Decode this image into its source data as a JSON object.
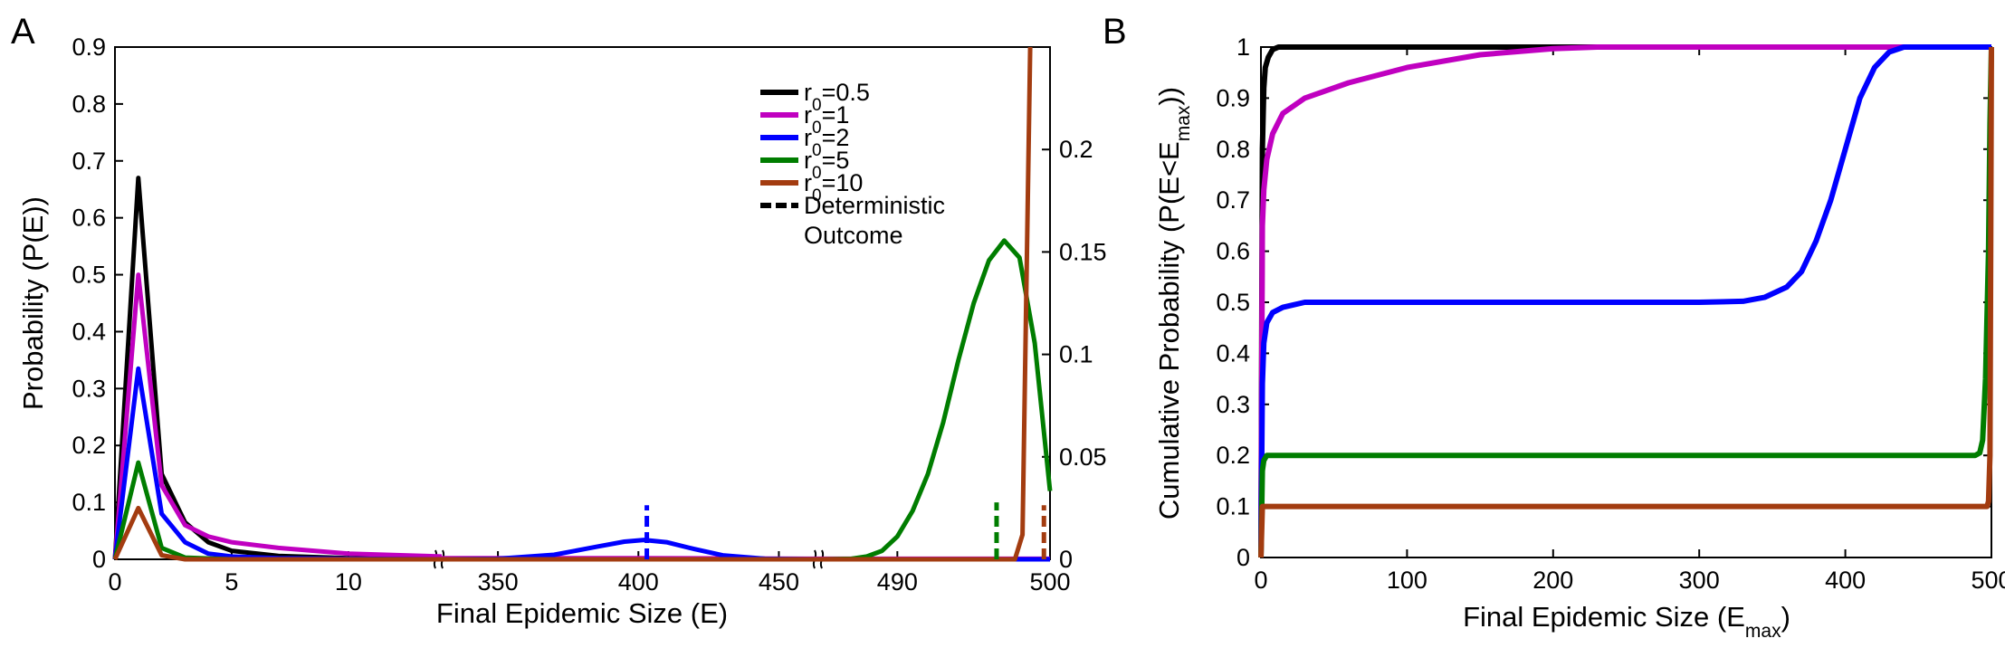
{
  "colors": {
    "r0_0_5": "#000000",
    "r0_1": "#c000c0",
    "r0_2": "#0000ff",
    "r0_5": "#007d00",
    "r0_10": "#a33c10"
  },
  "chart_data": [
    {
      "type": "line",
      "panel_label": "A",
      "xlabel": "Final Epidemic Size (E)",
      "ylabel": "Probability (P(E))",
      "axis_break": "broken x-axis in three segments: 0-14, 330-465, 485-500; right y-axis applies to r0=10",
      "yticks_left": [
        "0",
        "0.1",
        "0.2",
        "0.3",
        "0.4",
        "0.5",
        "0.6",
        "0.7",
        "0.8",
        "0.9"
      ],
      "ylim_left": [
        0,
        0.9
      ],
      "yticks_right": [
        "0",
        "0.05",
        "0.1",
        "0.15",
        "0.2"
      ],
      "ylim_right": [
        0,
        0.25
      ],
      "xticks": [
        "0",
        "5",
        "10",
        "350",
        "400",
        "450",
        "490",
        "500"
      ],
      "xtick_values": [
        0,
        5,
        10,
        350,
        400,
        450,
        490,
        500
      ],
      "legend": {
        "position": "top-right",
        "entries": [
          {
            "label_main": "r",
            "label_sub": "0",
            "label_rest": "=0.5",
            "style": "solid"
          },
          {
            "label_main": "r",
            "label_sub": "0",
            "label_rest": "=1",
            "style": "solid"
          },
          {
            "label_main": "r",
            "label_sub": "0",
            "label_rest": "=2",
            "style": "solid"
          },
          {
            "label_main": "r",
            "label_sub": "0",
            "label_rest": "=5",
            "style": "solid"
          },
          {
            "label_main": "r",
            "label_sub": "0",
            "label_rest": "=10",
            "style": "solid"
          },
          {
            "label_main": "Deterministic",
            "label_sub": "",
            "label_rest": "",
            "label_line2": "Outcome",
            "style": "dashed"
          }
        ]
      },
      "series": [
        {
          "name": "r0=0.5",
          "color_key": "r0_0_5",
          "segments": [
            [
              [
                0,
                0
              ],
              [
                1,
                0.67
              ],
              [
                2,
                0.15
              ],
              [
                3,
                0.065
              ],
              [
                4,
                0.03
              ],
              [
                5,
                0.015
              ],
              [
                7,
                0.006
              ],
              [
                10,
                0.002
              ],
              [
                14,
                0
              ]
            ],
            [
              [
                330,
                0
              ],
              [
                465,
                0
              ]
            ],
            [
              [
                485,
                0
              ],
              [
                500,
                0
              ]
            ]
          ]
        },
        {
          "name": "r0=1",
          "color_key": "r0_1",
          "segments": [
            [
              [
                0,
                0
              ],
              [
                1,
                0.5
              ],
              [
                2,
                0.13
              ],
              [
                3,
                0.06
              ],
              [
                4,
                0.04
              ],
              [
                5,
                0.03
              ],
              [
                7,
                0.02
              ],
              [
                10,
                0.01
              ],
              [
                14,
                0.005
              ]
            ],
            [
              [
                330,
                0.002
              ],
              [
                400,
                0.002
              ],
              [
                465,
                0.001
              ]
            ],
            [
              [
                485,
                0.001
              ],
              [
                500,
                0.001
              ]
            ]
          ]
        },
        {
          "name": "r0=2",
          "color_key": "r0_2",
          "segments": [
            [
              [
                0,
                0
              ],
              [
                1,
                0.335
              ],
              [
                2,
                0.08
              ],
              [
                3,
                0.03
              ],
              [
                4,
                0.01
              ],
              [
                5,
                0.005
              ],
              [
                7,
                0.002
              ],
              [
                10,
                0.001
              ],
              [
                14,
                0
              ]
            ],
            [
              [
                330,
                0
              ],
              [
                350,
                0.001
              ],
              [
                370,
                0.008
              ],
              [
                385,
                0.022
              ],
              [
                395,
                0.031
              ],
              [
                402,
                0.034
              ],
              [
                410,
                0.03
              ],
              [
                420,
                0.018
              ],
              [
                430,
                0.007
              ],
              [
                445,
                0.001
              ],
              [
                465,
                0
              ]
            ],
            [
              [
                485,
                0
              ],
              [
                500,
                0
              ]
            ]
          ]
        },
        {
          "name": "r0=5",
          "color_key": "r0_5",
          "segments": [
            [
              [
                0,
                0
              ],
              [
                1,
                0.17
              ],
              [
                2,
                0.02
              ],
              [
                3,
                0.003
              ],
              [
                5,
                0
              ],
              [
                14,
                0
              ]
            ],
            [
              [
                330,
                0
              ],
              [
                465,
                0
              ]
            ],
            [
              [
                485,
                0
              ],
              [
                487,
                0.001
              ],
              [
                488,
                0.005
              ],
              [
                489,
                0.015
              ],
              [
                490,
                0.04
              ],
              [
                491,
                0.085
              ],
              [
                492,
                0.15
              ],
              [
                493,
                0.24
              ],
              [
                494,
                0.35
              ],
              [
                495,
                0.45
              ],
              [
                496,
                0.525
              ],
              [
                497,
                0.56
              ],
              [
                498,
                0.53
              ],
              [
                499,
                0.38
              ],
              [
                500,
                0.12
              ]
            ]
          ]
        },
        {
          "name": "r0=10",
          "color_key": "r0_10",
          "axis": "right",
          "segments": [
            [
              [
                0,
                0
              ],
              [
                1,
                0.025
              ],
              [
                2,
                0.002
              ],
              [
                3,
                0
              ],
              [
                14,
                0
              ]
            ],
            [
              [
                330,
                0
              ],
              [
                465,
                0
              ]
            ],
            [
              [
                485,
                0
              ],
              [
                497.7,
                0
              ],
              [
                498.2,
                0.012
              ],
              [
                498.7,
                0.25
              ]
            ]
          ]
        }
      ],
      "deterministic": [
        {
          "color_key": "r0_2",
          "x": 403,
          "top": 0.095
        },
        {
          "color_key": "r0_5",
          "x": 496.5,
          "top": 0.1
        },
        {
          "color_key": "r0_10",
          "x": 499.6,
          "top": 0.095
        }
      ]
    },
    {
      "type": "line",
      "panel_label": "B",
      "xlabel_main": "Final Epidemic Size (E",
      "xlabel_sub": "max",
      "xlabel_rest": ")",
      "ylabel_main": "Cumulative Probability (P(E<E",
      "ylabel_sub": "max",
      "ylabel_rest": "))",
      "xlim": [
        0,
        500
      ],
      "ylim": [
        0,
        1
      ],
      "xticks": [
        "0",
        "100",
        "200",
        "300",
        "400",
        "500"
      ],
      "xtick_values": [
        0,
        100,
        200,
        300,
        400,
        500
      ],
      "yticks": [
        "0",
        "0.1",
        "0.2",
        "0.3",
        "0.4",
        "0.5",
        "0.6",
        "0.7",
        "0.8",
        "0.9",
        "1"
      ],
      "ytick_values": [
        0,
        0.1,
        0.2,
        0.3,
        0.4,
        0.5,
        0.6,
        0.7,
        0.8,
        0.9,
        1
      ],
      "series": [
        {
          "name": "r0=0.5",
          "color_key": "r0_0_5",
          "points": [
            [
              0,
              0
            ],
            [
              1,
              0.8
            ],
            [
              2,
              0.92
            ],
            [
              3,
              0.96
            ],
            [
              5,
              0.98
            ],
            [
              8,
              0.995
            ],
            [
              12,
              1
            ],
            [
              500,
              1
            ]
          ]
        },
        {
          "name": "r0=1",
          "color_key": "r0_1",
          "points": [
            [
              0,
              0
            ],
            [
              1,
              0.65
            ],
            [
              2,
              0.72
            ],
            [
              4,
              0.78
            ],
            [
              8,
              0.83
            ],
            [
              15,
              0.87
            ],
            [
              30,
              0.9
            ],
            [
              60,
              0.93
            ],
            [
              100,
              0.96
            ],
            [
              150,
              0.985
            ],
            [
              200,
              0.997
            ],
            [
              230,
              1
            ],
            [
              500,
              1
            ]
          ]
        },
        {
          "name": "r0=2",
          "color_key": "r0_2",
          "points": [
            [
              0,
              0
            ],
            [
              1,
              0.34
            ],
            [
              2,
              0.42
            ],
            [
              4,
              0.46
            ],
            [
              8,
              0.48
            ],
            [
              15,
              0.49
            ],
            [
              30,
              0.5
            ],
            [
              300,
              0.5
            ],
            [
              330,
              0.502
            ],
            [
              345,
              0.51
            ],
            [
              360,
              0.53
            ],
            [
              370,
              0.56
            ],
            [
              380,
              0.62
            ],
            [
              390,
              0.7
            ],
            [
              400,
              0.8
            ],
            [
              410,
              0.9
            ],
            [
              420,
              0.96
            ],
            [
              430,
              0.99
            ],
            [
              440,
              1
            ],
            [
              500,
              1
            ]
          ]
        },
        {
          "name": "r0=5",
          "color_key": "r0_5",
          "points": [
            [
              0,
              0
            ],
            [
              1,
              0.17
            ],
            [
              2,
              0.19
            ],
            [
              4,
              0.2
            ],
            [
              489,
              0.2
            ],
            [
              492,
              0.205
            ],
            [
              494,
              0.23
            ],
            [
              496,
              0.35
            ],
            [
              498,
              0.6
            ],
            [
              499,
              0.85
            ],
            [
              500,
              1
            ]
          ]
        },
        {
          "name": "r0=10",
          "color_key": "r0_10",
          "points": [
            [
              0,
              0
            ],
            [
              1,
              0.1
            ],
            [
              497,
              0.1
            ],
            [
              498,
              0.11
            ],
            [
              499,
              0.2
            ],
            [
              500,
              1
            ]
          ]
        }
      ]
    }
  ]
}
